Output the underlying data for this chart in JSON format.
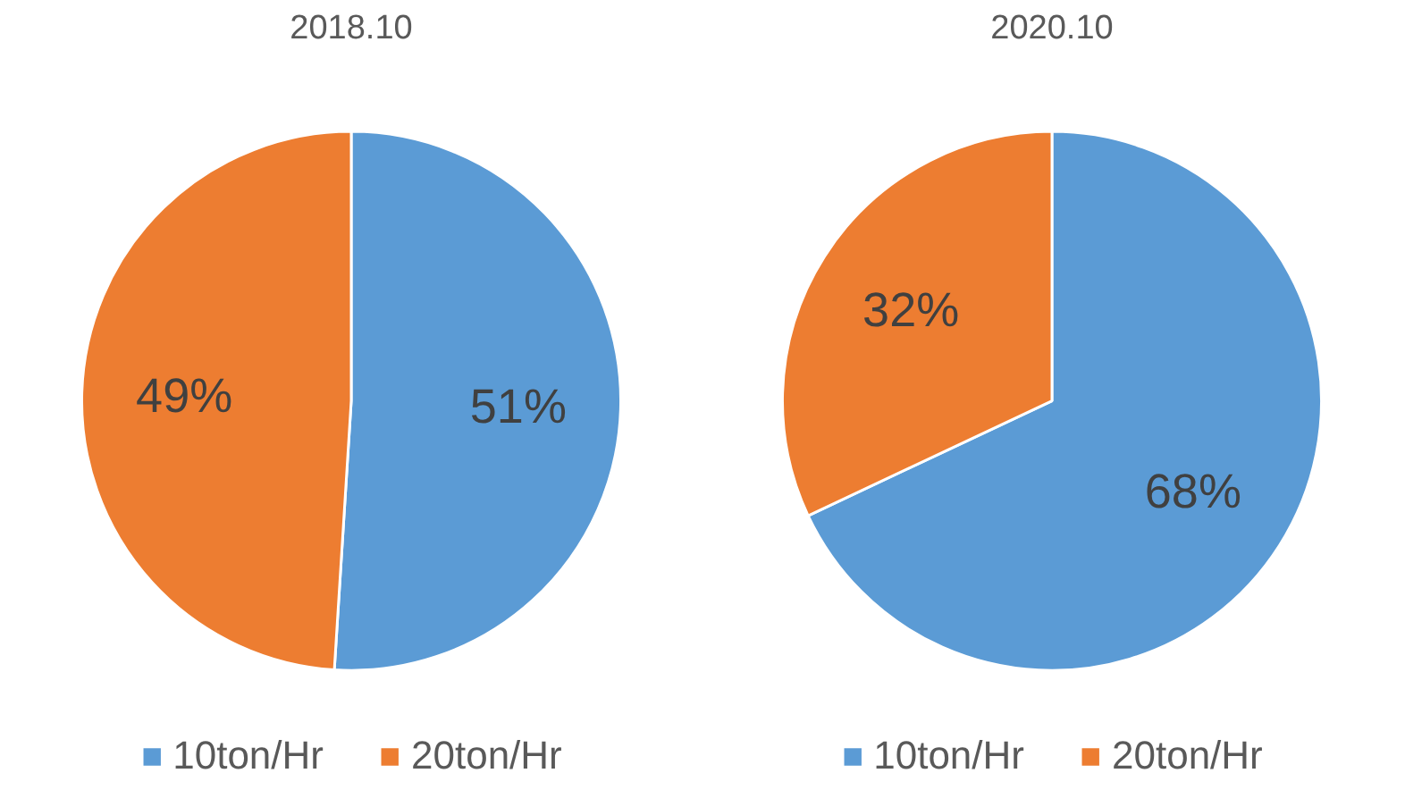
{
  "chart_data": [
    {
      "type": "pie",
      "title": "2018.10",
      "categories": [
        "10ton/Hr",
        "20ton/Hr"
      ],
      "values": [
        51,
        49
      ],
      "colors": [
        "#5b9bd5",
        "#ed7d31"
      ],
      "value_labels": [
        "51%",
        "49%"
      ],
      "legend": "bottom"
    },
    {
      "type": "pie",
      "title": "2020.10",
      "categories": [
        "10ton/Hr",
        "20ton/Hr"
      ],
      "values": [
        68,
        32
      ],
      "colors": [
        "#5b9bd5",
        "#ed7d31"
      ],
      "value_labels": [
        "68%",
        "32%"
      ],
      "legend": "bottom"
    }
  ]
}
